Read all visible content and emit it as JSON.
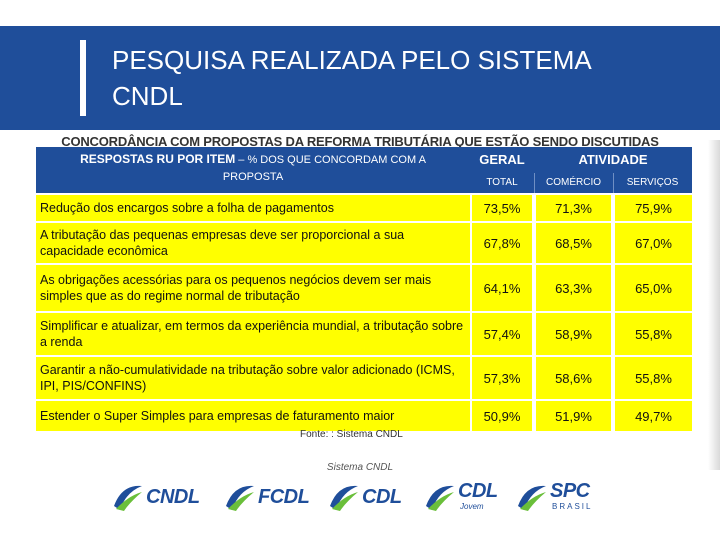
{
  "header": {
    "title_line1": "PESQUISA REALIZADA PELO SISTEMA",
    "title_line2": "CNDL"
  },
  "subtitle": "CONCORDÂNCIA COM PROPOSTAS DA REFORMA TRIBUTÁRIA QUE ESTÃO SENDO DISCUTIDAS",
  "table": {
    "header_main": "RESPOSTAS RU POR ITEM",
    "header_main_small": " – % DOS QUE CONCORDAM COM A",
    "header_main_sub": "PROPOSTA",
    "col_geral": "GERAL",
    "col_atividade": "ATIVIDADE",
    "sub_total": "TOTAL",
    "sub_comercio": "COMÉRCIO",
    "sub_servicos": "SERVIÇOS",
    "rows": [
      {
        "label": "Redução dos encargos sobre a folha de pagamentos",
        "total": "73,5%",
        "comercio": "71,3%",
        "servicos": "75,9%"
      },
      {
        "label": "A tributação das pequenas empresas deve ser proporcional a sua capacidade econômica",
        "total": "67,8%",
        "comercio": "68,5%",
        "servicos": "67,0%"
      },
      {
        "label": "As obrigações acessórias para os pequenos negócios devem ser mais simples que as do regime normal de tributação",
        "total": "64,1%",
        "comercio": "63,3%",
        "servicos": "65,0%"
      },
      {
        "label": "Simplificar e atualizar, em termos da experiência mundial, a tributação sobre a renda",
        "total": "57,4%",
        "comercio": "58,9%",
        "servicos": "55,8%"
      },
      {
        "label": "Garantir a não-cumulatividade na tributação sobre valor adicionado (ICMS, IPI, PIS/CONFINS)",
        "total": "57,3%",
        "comercio": "58,6%",
        "servicos": "55,8%"
      },
      {
        "label": "Estender o Super Simples para empresas de faturamento maior",
        "total": "50,9%",
        "comercio": "51,9%",
        "servicos": "49,7%"
      }
    ]
  },
  "source": "Fonte: : Sistema CNDL",
  "footer": {
    "label": "Sistema CNDL",
    "logos": [
      {
        "name": "CNDL",
        "sub": ""
      },
      {
        "name": "FCDL",
        "sub": ""
      },
      {
        "name": "CDL",
        "sub": ""
      },
      {
        "name": "CDL",
        "sub": "Jovem"
      },
      {
        "name": "SPC",
        "sub": "BRASIL"
      }
    ]
  },
  "colors": {
    "brand_blue": "#1f4e9a",
    "highlight_yellow": "#ffff00",
    "logo_green": "#6abf3a"
  }
}
